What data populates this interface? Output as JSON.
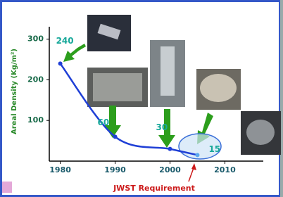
{
  "chart_data": {
    "type": "line",
    "y_label": "Areal Density (Kg/m²)",
    "x": [
      1980,
      1990,
      2000,
      2005
    ],
    "series": [
      {
        "color": "#1f3fd6",
        "values": [
          240,
          60,
          30,
          15
        ]
      }
    ],
    "xlim": [
      1978,
      2017
    ],
    "ylim": [
      0,
      315
    ],
    "xticks": [
      1980,
      1990,
      2000,
      2010
    ],
    "yticks": [
      100,
      200,
      300
    ],
    "annotation": "JWST Requirement",
    "annotation_color": "#cc1a1a"
  }
}
